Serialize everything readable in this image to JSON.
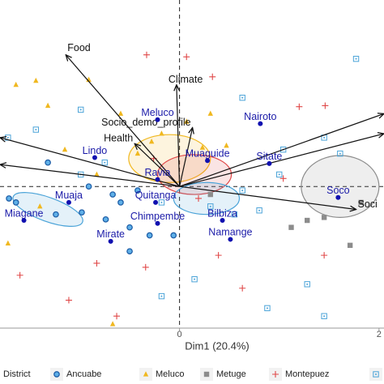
{
  "chart_data": {
    "type": "scatter",
    "xlabel": "Dim1 (20.4%)",
    "xlim": [
      -1.8,
      2.05
    ],
    "ylim": [
      -1.42,
      1.87
    ],
    "xticks": [
      0,
      2
    ],
    "legend_title": "District",
    "series": [
      {
        "name": "Ancuabe",
        "color": "#1f5fa8",
        "marker": "circle",
        "x": [
          -1.71,
          -1.64,
          -1.24,
          -0.98,
          -0.74,
          -0.59,
          -0.5,
          -0.42,
          -0.91,
          -1.32,
          -0.67,
          -0.3,
          -0.06,
          -0.5
        ],
        "values": [
          -0.12,
          -0.16,
          -0.28,
          -0.26,
          -0.33,
          -0.16,
          -0.41,
          -0.04,
          0.0,
          0.24,
          -0.08,
          -0.49,
          -0.49,
          -0.65
        ]
      },
      {
        "name": "Meluco",
        "color": "#f0b820",
        "marker": "triangle",
        "x": [
          -1.64,
          -1.44,
          -0.91,
          -1.32,
          -0.59,
          -0.28,
          -0.18,
          0.07,
          0.31,
          -0.42,
          -1.15,
          -1.4,
          -1.72,
          -0.67,
          0.47,
          -0.83,
          0.23
        ],
        "values": [
          1.02,
          1.06,
          1.07,
          0.81,
          0.73,
          0.45,
          0.53,
          0.65,
          0.73,
          0.33,
          0.37,
          -0.2,
          -0.57,
          -1.38,
          0.41,
          0.12,
          0.39
        ]
      },
      {
        "name": "Metuge",
        "color": "#8c8c8c",
        "marker": "square",
        "x": [
          1.28,
          1.71,
          1.45,
          1.82,
          1.12,
          0.31
        ],
        "values": [
          -0.34,
          -0.59,
          -0.31,
          -0.16,
          -0.41,
          -0.08
        ]
      },
      {
        "name": "Montepuez",
        "color": "#e04848",
        "marker": "plus",
        "x": [
          -0.33,
          0.07,
          0.33,
          1.2,
          1.46,
          -0.26,
          0.19,
          -0.83,
          -0.34,
          -1.6,
          -1.11,
          -0.63,
          0.39,
          0.63,
          1.45,
          1.04
        ],
        "values": [
          1.32,
          1.3,
          1.1,
          0.8,
          0.81,
          0.28,
          -0.12,
          -0.77,
          -0.81,
          -0.89,
          -1.14,
          -1.3,
          -0.69,
          -1.02,
          -0.69,
          0.08
        ]
      },
      {
        "color": "#4aa3d8",
        "marker": "square-dot",
        "x": [
          1.77,
          -1.72,
          -1.44,
          -0.99,
          -0.75,
          -0.18,
          0.31,
          0.63,
          1.04,
          1.0,
          0.8,
          0.55,
          1.61,
          1.45,
          0.88,
          1.28,
          1.45,
          0.15,
          -0.18,
          -0.99,
          0.63
        ],
        "values": [
          1.28,
          0.49,
          0.57,
          0.12,
          0.24,
          -0.16,
          -0.2,
          -0.04,
          0.37,
          0.12,
          -0.24,
          -0.28,
          0.33,
          0.49,
          -1.22,
          -0.98,
          -1.3,
          -0.93,
          -1.1,
          0.77,
          0.89
        ]
      }
    ],
    "ellipses": [
      {
        "x": -1.32,
        "y": -0.23,
        "rx": 0.37,
        "ry": 0.12,
        "angle": -20,
        "color": "#4aa3d8"
      },
      {
        "x": 1.61,
        "y": 0.0,
        "rx": 0.39,
        "ry": 0.31,
        "angle": 0,
        "color": "#8c8c8c"
      },
      {
        "x": -0.1,
        "y": 0.28,
        "rx": 0.41,
        "ry": 0.24,
        "angle": 0,
        "color": "#f0b820"
      },
      {
        "x": 0.15,
        "y": 0.12,
        "rx": 0.37,
        "ry": 0.2,
        "angle": 0,
        "color": "#e04848"
      },
      {
        "x": 0.27,
        "y": -0.12,
        "rx": 0.33,
        "ry": 0.16,
        "angle": 0,
        "color": "#4aa3d8"
      }
    ],
    "arrows": [
      {
        "label": "Food",
        "x": -1.14,
        "y": 1.32
      },
      {
        "label": "Climate",
        "x": -0.03,
        "y": 1.02
      },
      {
        "label": "Socio_demo_profile",
        "x": 0.13,
        "y": 0.59
      },
      {
        "label": "Health",
        "x": -0.45,
        "y": 0.43
      },
      {
        "label": "Soci",
        "x": 1.77,
        "y": -0.23
      },
      {
        "x": -1.8,
        "y": 0.49
      },
      {
        "x": -1.8,
        "y": 0.22
      },
      {
        "x": 2.05,
        "y": 0.73
      },
      {
        "x": 2.05,
        "y": 0.53
      }
    ],
    "sites": [
      {
        "label": "Meluco",
        "x": -0.22,
        "y": 0.67
      },
      {
        "label": "Nairoto",
        "x": 0.81,
        "y": 0.63
      },
      {
        "label": "Sitate",
        "x": 0.9,
        "y": 0.23
      },
      {
        "label": "Muaguide",
        "x": 0.28,
        "y": 0.26
      },
      {
        "label": "Ravia",
        "x": -0.22,
        "y": 0.07
      },
      {
        "label": "Lindo",
        "x": -0.85,
        "y": 0.29
      },
      {
        "label": "Muaja",
        "x": -1.11,
        "y": -0.16
      },
      {
        "label": "Miagane",
        "x": -1.56,
        "y": -0.34
      },
      {
        "label": "Quitanga",
        "x": -0.24,
        "y": -0.16
      },
      {
        "label": "Chimpembe",
        "x": -0.22,
        "y": -0.37
      },
      {
        "label": "Bilbiza",
        "x": 0.43,
        "y": -0.34
      },
      {
        "label": "Namange",
        "x": 0.51,
        "y": -0.53
      },
      {
        "label": "Mirate",
        "x": -0.69,
        "y": -0.55
      },
      {
        "label": "Soco",
        "x": 1.59,
        "y": -0.11
      }
    ]
  }
}
